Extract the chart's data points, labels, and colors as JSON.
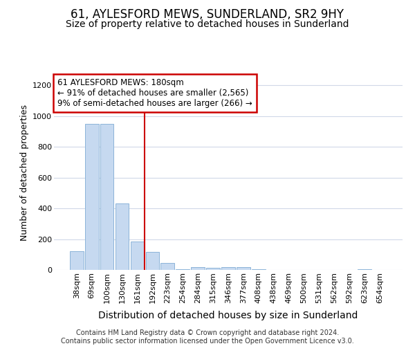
{
  "title": "61, AYLESFORD MEWS, SUNDERLAND, SR2 9HY",
  "subtitle": "Size of property relative to detached houses in Sunderland",
  "xlabel": "Distribution of detached houses by size in Sunderland",
  "ylabel": "Number of detached properties",
  "footer_line1": "Contains HM Land Registry data © Crown copyright and database right 2024.",
  "footer_line2": "Contains public sector information licensed under the Open Government Licence v3.0.",
  "categories": [
    "38sqm",
    "69sqm",
    "100sqm",
    "130sqm",
    "161sqm",
    "192sqm",
    "223sqm",
    "254sqm",
    "284sqm",
    "315sqm",
    "346sqm",
    "377sqm",
    "408sqm",
    "438sqm",
    "469sqm",
    "500sqm",
    "531sqm",
    "562sqm",
    "592sqm",
    "623sqm",
    "654sqm"
  ],
  "values": [
    120,
    950,
    950,
    430,
    185,
    115,
    45,
    5,
    18,
    12,
    18,
    18,
    3,
    0,
    0,
    0,
    0,
    0,
    0,
    5,
    0
  ],
  "bar_color": "#c6d9f0",
  "bar_edge_color": "#8cb4d9",
  "vline_color": "#cc0000",
  "vline_pos": 4.5,
  "annotation_line1": "61 AYLESFORD MEWS: 180sqm",
  "annotation_line2": "← 91% of detached houses are smaller (2,565)",
  "annotation_line3": "9% of semi-detached houses are larger (266) →",
  "annotation_box_facecolor": "#ffffff",
  "annotation_box_edgecolor": "#cc0000",
  "ylim": [
    0,
    1260
  ],
  "yticks": [
    0,
    200,
    400,
    600,
    800,
    1000,
    1200
  ],
  "bg_color": "#ffffff",
  "grid_color": "#d0d8e8",
  "title_fontsize": 12,
  "subtitle_fontsize": 10,
  "ylabel_fontsize": 9,
  "xlabel_fontsize": 10,
  "tick_fontsize": 8,
  "annotation_fontsize": 8.5,
  "footer_fontsize": 7
}
